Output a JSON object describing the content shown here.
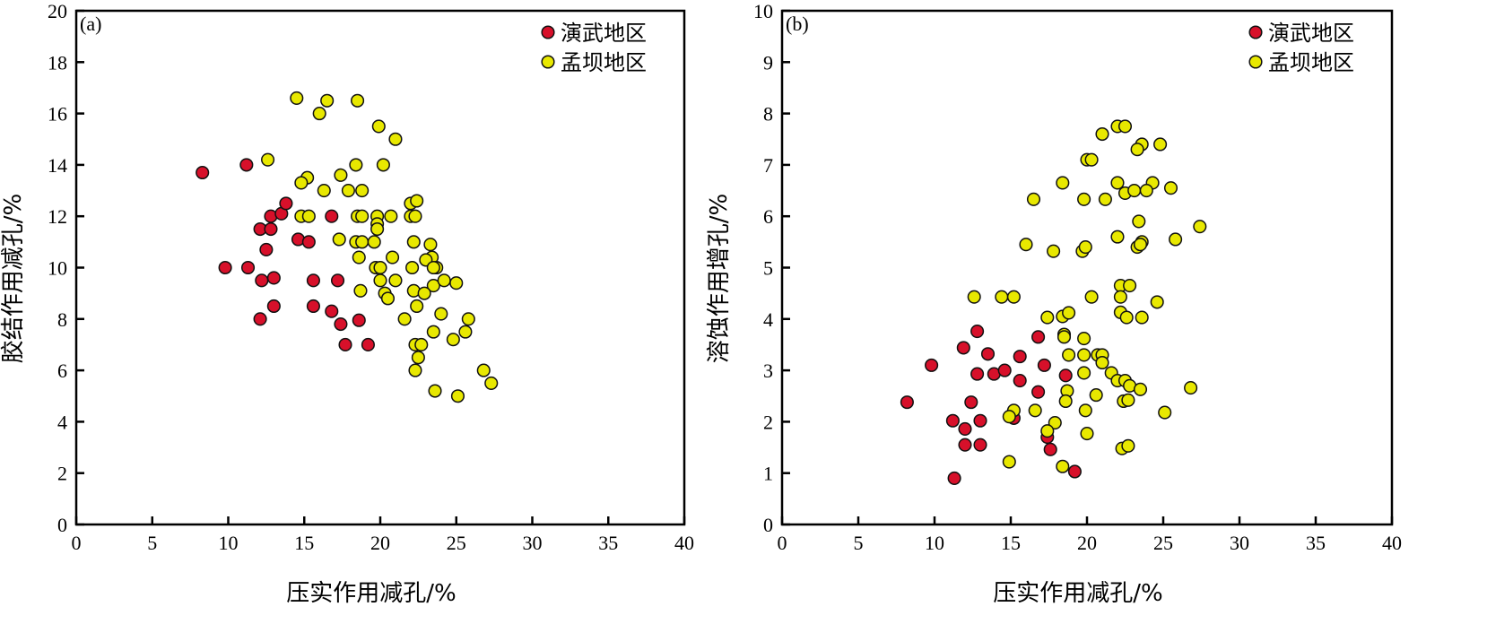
{
  "chart_data": [
    {
      "type": "scatter",
      "panel_label": "(a)",
      "xlabel": "压实作用减孔/%",
      "ylabel": "胶结作用减孔/%",
      "xlim": [
        0,
        40
      ],
      "ylim": [
        0,
        20
      ],
      "xticks": [
        0,
        5,
        10,
        15,
        20,
        25,
        30,
        35,
        40
      ],
      "yticks": [
        0,
        2,
        4,
        6,
        8,
        10,
        12,
        14,
        16,
        18,
        20
      ],
      "legend_position": "top-right",
      "grid": false,
      "series": [
        {
          "name": "演武地区",
          "color": "#d7102a",
          "points": [
            [
              8.3,
              13.7
            ],
            [
              11.2,
              14
            ],
            [
              9.8,
              10
            ],
            [
              11.3,
              10
            ],
            [
              12.1,
              11.5
            ],
            [
              12.2,
              9.5
            ],
            [
              12.1,
              8
            ],
            [
              12.5,
              10.7
            ],
            [
              12.8,
              11.5
            ],
            [
              12.8,
              12
            ],
            [
              13,
              9.6
            ],
            [
              13,
              8.5
            ],
            [
              13.5,
              12.1
            ],
            [
              13.8,
              12.5
            ],
            [
              14.6,
              11.1
            ],
            [
              15.3,
              11
            ],
            [
              15.6,
              9.5
            ],
            [
              15.6,
              8.5
            ],
            [
              16.8,
              8.3
            ],
            [
              16.8,
              12
            ],
            [
              17.2,
              9.5
            ],
            [
              17.4,
              7.8
            ],
            [
              17.7,
              7
            ],
            [
              18.6,
              7.95
            ],
            [
              19.2,
              7
            ]
          ]
        },
        {
          "name": "孟坝地区",
          "color": "#e8e800",
          "points": [
            [
              14.5,
              16.6
            ],
            [
              16.5,
              16.5
            ],
            [
              16,
              16
            ],
            [
              18.5,
              16.5
            ],
            [
              19.9,
              15.5
            ],
            [
              21,
              15
            ],
            [
              12.6,
              14.2
            ],
            [
              18.4,
              14
            ],
            [
              20.2,
              14
            ],
            [
              15.2,
              13.5
            ],
            [
              14.8,
              13.3
            ],
            [
              17.4,
              13.6
            ],
            [
              16.3,
              13
            ],
            [
              17.9,
              13
            ],
            [
              18.8,
              13
            ],
            [
              22,
              12.5
            ],
            [
              22.4,
              12.6
            ],
            [
              14.8,
              12
            ],
            [
              15.3,
              12
            ],
            [
              18.5,
              12
            ],
            [
              18.8,
              12
            ],
            [
              19.8,
              12
            ],
            [
              20.7,
              12
            ],
            [
              22,
              12
            ],
            [
              22.3,
              12
            ],
            [
              19.8,
              11.7
            ],
            [
              19.8,
              11.5
            ],
            [
              17.3,
              11.1
            ],
            [
              18.4,
              11
            ],
            [
              18.8,
              11
            ],
            [
              19.6,
              11
            ],
            [
              22.2,
              11
            ],
            [
              23.3,
              10.9
            ],
            [
              22.1,
              10
            ],
            [
              20.8,
              10.4
            ],
            [
              23.4,
              10.4
            ],
            [
              23,
              10.3
            ],
            [
              23.7,
              10
            ],
            [
              23.5,
              10
            ],
            [
              18.6,
              10.4
            ],
            [
              19.7,
              10
            ],
            [
              20,
              10
            ],
            [
              21,
              9.5
            ],
            [
              20,
              9.5
            ],
            [
              22.2,
              9.1
            ],
            [
              23.5,
              9.3
            ],
            [
              24.2,
              9.5
            ],
            [
              25,
              9.4
            ],
            [
              18.7,
              9.1
            ],
            [
              20.3,
              9
            ],
            [
              20.5,
              8.8
            ],
            [
              22.4,
              8.5
            ],
            [
              22.9,
              9
            ],
            [
              21.6,
              8
            ],
            [
              24,
              8.2
            ],
            [
              25.8,
              8
            ],
            [
              22.3,
              7
            ],
            [
              22.7,
              7
            ],
            [
              23.5,
              7.5
            ],
            [
              24.8,
              7.2
            ],
            [
              25.6,
              7.5
            ],
            [
              22.5,
              6.5
            ],
            [
              22.3,
              6
            ],
            [
              26.8,
              6
            ],
            [
              27.3,
              5.5
            ],
            [
              23.6,
              5.2
            ],
            [
              25.1,
              5
            ]
          ]
        }
      ]
    },
    {
      "type": "scatter",
      "panel_label": "(b)",
      "xlabel": "压实作用减孔/%",
      "ylabel": "溶蚀作用增孔/%",
      "xlim": [
        0,
        40
      ],
      "ylim": [
        0,
        10
      ],
      "xticks": [
        0,
        5,
        10,
        15,
        20,
        25,
        30,
        35,
        40
      ],
      "yticks": [
        0,
        1,
        2,
        3,
        4,
        5,
        6,
        7,
        8,
        9,
        10
      ],
      "legend_position": "top-right",
      "grid": false,
      "series": [
        {
          "name": "演武地区",
          "color": "#d7102a",
          "points": [
            [
              8.2,
              2.38
            ],
            [
              9.8,
              3.1
            ],
            [
              11.2,
              2.02
            ],
            [
              11.3,
              0.9
            ],
            [
              11.9,
              3.44
            ],
            [
              12,
              1.86
            ],
            [
              12,
              1.55
            ],
            [
              12.4,
              2.38
            ],
            [
              12.8,
              3.76
            ],
            [
              12.8,
              2.93
            ],
            [
              13,
              2.02
            ],
            [
              13,
              1.55
            ],
            [
              13.5,
              3.32
            ],
            [
              13.9,
              2.93
            ],
            [
              14.6,
              3
            ],
            [
              15.2,
              2.07
            ],
            [
              15.6,
              2.8
            ],
            [
              15.6,
              3.27
            ],
            [
              16.8,
              3.65
            ],
            [
              16.8,
              2.58
            ],
            [
              17.2,
              3.1
            ],
            [
              17.4,
              1.7
            ],
            [
              17.6,
              1.46
            ],
            [
              18.6,
              2.9
            ],
            [
              19.2,
              1.03
            ]
          ]
        },
        {
          "name": "孟坝地区",
          "color": "#e8e800",
          "points": [
            [
              22,
              7.75
            ],
            [
              22.5,
              7.75
            ],
            [
              21,
              7.6
            ],
            [
              23.6,
              7.4
            ],
            [
              23.3,
              7.3
            ],
            [
              24.8,
              7.4
            ],
            [
              20,
              7.1
            ],
            [
              20.3,
              7.1
            ],
            [
              18.4,
              6.65
            ],
            [
              22,
              6.65
            ],
            [
              24.3,
              6.65
            ],
            [
              22.5,
              6.45
            ],
            [
              23.1,
              6.5
            ],
            [
              23.9,
              6.5
            ],
            [
              25.5,
              6.55
            ],
            [
              19.8,
              6.33
            ],
            [
              16.5,
              6.33
            ],
            [
              21.2,
              6.33
            ],
            [
              23.4,
              5.9
            ],
            [
              22,
              5.6
            ],
            [
              23.6,
              5.5
            ],
            [
              23.3,
              5.4
            ],
            [
              23.5,
              5.45
            ],
            [
              25.8,
              5.55
            ],
            [
              27.4,
              5.8
            ],
            [
              16,
              5.45
            ],
            [
              17.8,
              5.32
            ],
            [
              19.7,
              5.32
            ],
            [
              19.9,
              5.4
            ],
            [
              22.2,
              4.65
            ],
            [
              22.8,
              4.65
            ],
            [
              22.2,
              4.43
            ],
            [
              12.6,
              4.43
            ],
            [
              14.4,
              4.43
            ],
            [
              15.2,
              4.43
            ],
            [
              20.3,
              4.43
            ],
            [
              24.6,
              4.33
            ],
            [
              22.2,
              4.13
            ],
            [
              22.6,
              4.03
            ],
            [
              23.6,
              4.03
            ],
            [
              17.4,
              4.03
            ],
            [
              18.4,
              4.05
            ],
            [
              18.8,
              4.12
            ],
            [
              18.5,
              3.7
            ],
            [
              18.5,
              3.65
            ],
            [
              19.8,
              3.62
            ],
            [
              19.8,
              3.3
            ],
            [
              18.8,
              3.3
            ],
            [
              20.7,
              3.3
            ],
            [
              21,
              3.3
            ],
            [
              21,
              3.15
            ],
            [
              21.6,
              2.95
            ],
            [
              19.8,
              2.95
            ],
            [
              22,
              2.8
            ],
            [
              22.5,
              2.8
            ],
            [
              22.8,
              2.7
            ],
            [
              23.5,
              2.63
            ],
            [
              26.8,
              2.66
            ],
            [
              18.7,
              2.6
            ],
            [
              18.6,
              2.4
            ],
            [
              20.6,
              2.52
            ],
            [
              22.4,
              2.4
            ],
            [
              22.7,
              2.42
            ],
            [
              16.6,
              2.22
            ],
            [
              15.2,
              2.22
            ],
            [
              14.9,
              2.1
            ],
            [
              19.9,
              2.22
            ],
            [
              17.9,
              1.98
            ],
            [
              17.4,
              1.82
            ],
            [
              20,
              1.77
            ],
            [
              25.1,
              2.18
            ],
            [
              14.9,
              1.22
            ],
            [
              18.4,
              1.13
            ],
            [
              22.3,
              1.48
            ],
            [
              22.7,
              1.53
            ]
          ]
        }
      ]
    }
  ]
}
